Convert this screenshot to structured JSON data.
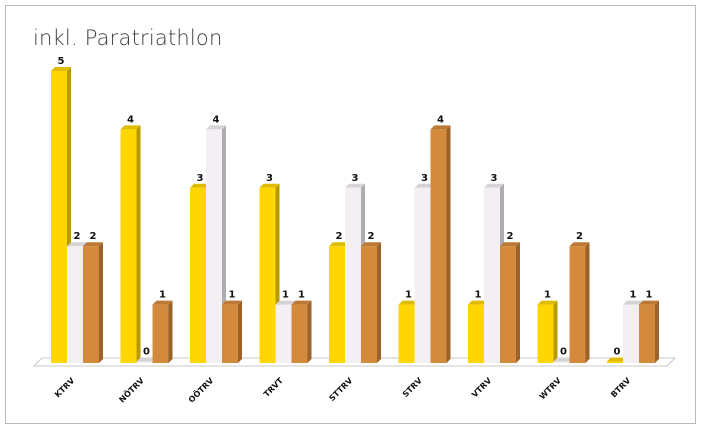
{
  "chart_data": {
    "type": "bar",
    "title": "inkl. Paratriathlon",
    "categories": [
      "KTRV",
      "NÖTRV",
      "OÖTRV",
      "TRVT",
      "STTRV",
      "STRV",
      "VTRV",
      "WTRV",
      "BTRV"
    ],
    "series": [
      {
        "values": [
          5,
          4,
          3,
          3,
          2,
          1,
          1,
          1,
          0
        ],
        "color": "#FFD600"
      },
      {
        "values": [
          2,
          0,
          4,
          1,
          3,
          3,
          3,
          0,
          1
        ],
        "color": "#F3EFF3"
      },
      {
        "values": [
          2,
          1,
          1,
          1,
          2,
          4,
          2,
          2,
          1
        ],
        "color": "#D48A3C"
      }
    ],
    "ylim": [
      0,
      5
    ],
    "grid": false,
    "legend": "none",
    "style": "3d-column"
  }
}
